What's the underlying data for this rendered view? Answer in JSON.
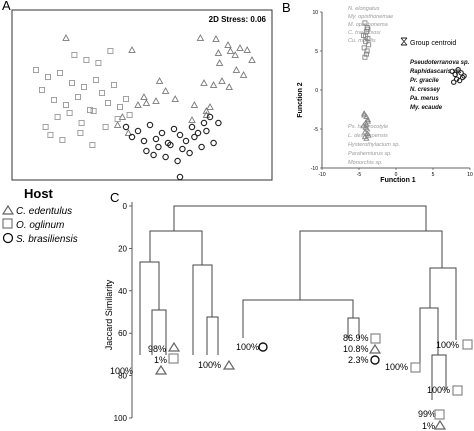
{
  "panels": {
    "A": {
      "letter": "A",
      "stress": "2D Stress: 0.06",
      "chart_data": {
        "type": "scatter",
        "title": "",
        "xlabel": "",
        "ylabel": "",
        "series": [
          {
            "name": "C. edentulus",
            "marker": "triangle",
            "color": "#777777",
            "x": [
              45,
              100,
              157,
              170,
              172,
              180,
              182,
              186,
              190,
              196,
              200,
              173,
              187,
              193,
              160,
              168,
              175,
              181,
              123,
              128,
              136,
              112,
              120,
              110,
              105,
              92,
              88,
              97,
              152,
              162,
              165,
              162,
              150
            ],
            "y": [
              23,
              35,
              23,
              24,
              38,
              30,
              36,
              40,
              33,
              35,
              45,
              48,
              55,
              60,
              68,
              70,
              66,
              72,
              66,
              76,
              84,
              88,
              86,
              82,
              90,
              102,
              110,
              118,
              90,
              96,
              92,
              100,
              105
            ]
          },
          {
            "name": "O. oglinum",
            "marker": "square",
            "color": "#999999",
            "x": [
              20,
              25,
              30,
              35,
              40,
              45,
              50,
              55,
              60,
              65,
              70,
              75,
              80,
              85,
              90,
              95,
              28,
              38,
              48,
              58,
              68,
              78,
              88,
              98,
              52,
              62,
              72,
              82,
              32,
              42,
              57,
              67
            ],
            "y": [
              55,
              75,
              62,
              85,
              58,
              90,
              68,
              82,
              72,
              95,
              65,
              78,
              88,
              70,
              92,
              84,
              112,
              102,
              98,
              108,
              96,
              112,
              104,
              100,
              40,
              45,
              48,
              36,
              120,
              125,
              118,
              130
            ]
          },
          {
            "name": "S. brasiliensis",
            "marker": "circle",
            "color": "#222222",
            "x": [
              95,
              100,
              105,
              110,
              115,
              120,
              125,
              130,
              135,
              140,
              145,
              150,
              155,
              160,
              165,
              112,
              122,
              132,
              142,
              152,
              162,
              172,
              118,
              128,
              138,
              148,
              158,
              168,
              140
            ],
            "y": [
              112,
              122,
              116,
              126,
              110,
              124,
              118,
              128,
              114,
              120,
              126,
              112,
              118,
              108,
              102,
              136,
              132,
              130,
              134,
              122,
              116,
              108,
              140,
              142,
              146,
              138,
              132,
              128,
              162
            ]
          }
        ]
      }
    },
    "B": {
      "letter": "B",
      "group_centroid_label": "Group centroid",
      "left_labels_gray": [
        "N. elongatus",
        "My. opisthonemae",
        "M. opisthonema",
        "C. travassosi",
        "Cu. mobilis"
      ],
      "right_labels": [
        "Pseudoterranova sp.",
        "Raphidascaris sp.",
        "Pr. gracile",
        "N. cressey",
        "Pa. merus",
        "My. ecaude"
      ],
      "bottom_labels_gray": [
        "Ps. heterocotyle",
        "L. desterroensis",
        "Hysterothylacium sp.",
        "Parahemiurus sp.",
        "Monorchis sp."
      ],
      "chart_data": {
        "type": "scatter",
        "title": "",
        "xlabel": "Function 1",
        "ylabel": "Function 2",
        "xlim": [
          -10,
          10
        ],
        "ylim": [
          -10,
          10
        ],
        "x_ticks": [
          -10,
          -5,
          0,
          5,
          10
        ],
        "y_ticks": [
          -10,
          -5,
          0,
          5,
          10
        ],
        "series": [
          {
            "name": "O. oglinum",
            "marker": "square",
            "color": "#888888",
            "x": [
              -4.2,
              -3.9,
              -4.0,
              -4.4,
              -3.8,
              -4.1,
              -3.7,
              -4.3,
              -3.9,
              -4.0,
              -4.2,
              -3.8,
              -4.1
            ],
            "y": [
              8.6,
              8.0,
              7.5,
              7.0,
              6.6,
              6.2,
              5.8,
              5.4,
              5.0,
              4.6,
              4.2,
              7.8,
              6.9
            ]
          },
          {
            "name": "C. edentulus",
            "marker": "triangle",
            "color": "#888888",
            "x": [
              -4.3,
              -4.0,
              -3.8,
              -4.1,
              -4.4,
              -3.9,
              -4.2,
              -3.7,
              -4.0,
              -4.3,
              -3.8,
              -4.1,
              -3.9,
              -4.2,
              -4.0
            ],
            "y": [
              -3.0,
              -3.4,
              -3.8,
              -4.2,
              -4.6,
              -5.0,
              -5.4,
              -5.8,
              -6.2,
              -3.2,
              -4.0,
              -4.8,
              -5.6,
              -6.0,
              -4.4
            ]
          },
          {
            "name": "S. brasiliensis",
            "marker": "circle",
            "color": "#222222",
            "x": [
              7.6,
              8.0,
              8.4,
              8.8,
              9.2,
              8.2,
              8.6,
              9.0,
              7.8
            ],
            "y": [
              2.4,
              2.0,
              2.6,
              2.2,
              1.8,
              1.4,
              1.2,
              1.6,
              1.0
            ]
          }
        ]
      }
    },
    "C": {
      "letter": "C",
      "chart_data": {
        "type": "dendrogram",
        "title": "",
        "xlabel": "",
        "ylabel": "Jaccard Similarity",
        "ylim": [
          0,
          100
        ],
        "y_ticks": [
          0,
          20,
          40,
          60,
          80,
          100
        ],
        "annotations": [
          {
            "text": "98%",
            "marker": "triangle"
          },
          {
            "text": "1%",
            "marker": "square"
          },
          {
            "text": "100%",
            "marker": "triangle"
          },
          {
            "text": "100%",
            "marker": "triangle"
          },
          {
            "text": "100%",
            "marker": "circle"
          },
          {
            "text": "86.9%",
            "marker": "square"
          },
          {
            "text": "10.8%",
            "marker": "triangle"
          },
          {
            "text": "2.3%",
            "marker": "circle"
          },
          {
            "text": "100%",
            "marker": "square"
          },
          {
            "text": "100%",
            "marker": "square"
          },
          {
            "text": "100%",
            "marker": "square"
          },
          {
            "text": "99%",
            "marker": "square"
          },
          {
            "text": "1%",
            "marker": "triangle"
          }
        ]
      }
    }
  },
  "legend": {
    "title": "Host",
    "items": [
      {
        "label": "C. edentulus",
        "marker": "triangle"
      },
      {
        "label": "O. oglinum",
        "marker": "square"
      },
      {
        "label": "S. brasiliensis",
        "marker": "circle"
      }
    ]
  }
}
